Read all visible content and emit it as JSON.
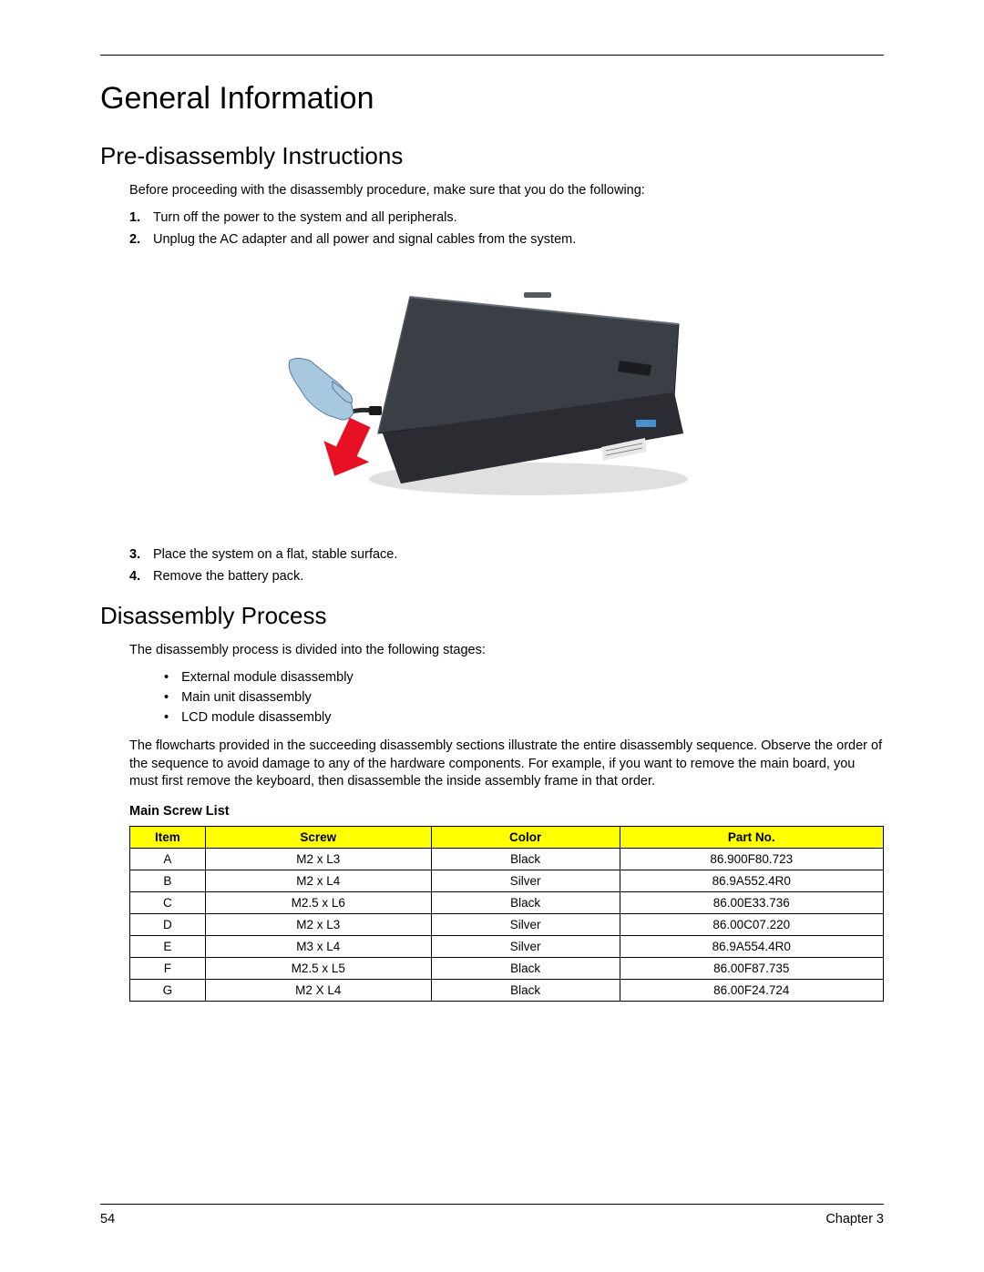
{
  "page": {
    "number": "54",
    "chapter": "Chapter 3"
  },
  "h1": "General Information",
  "section1": {
    "title": "Pre-disassembly Instructions",
    "intro": "Before proceeding with the disassembly procedure, make sure that you do the following:",
    "steps_a": [
      "Turn off the power to the system and all peripherals.",
      "Unplug the AC adapter and all power and signal cables from the system."
    ],
    "steps_b": [
      "Place the system on a flat, stable surface.",
      "Remove the battery pack."
    ]
  },
  "section2": {
    "title": "Disassembly Process",
    "intro": "The disassembly process is divided into the following stages:",
    "bullets": [
      "External module disassembly",
      "Main unit disassembly",
      "LCD module disassembly"
    ],
    "note": "The flowcharts provided in the succeeding disassembly sections illustrate the entire disassembly sequence. Observe the order of the sequence to avoid damage to any of the hardware components. For example, if you want to remove the main board, you must first remove the keyboard, then disassemble the inside assembly frame in that order."
  },
  "table": {
    "title": "Main Screw List",
    "columns": [
      "Item",
      "Screw",
      "Color",
      "Part No."
    ],
    "col_widths": [
      "10%",
      "30%",
      "25%",
      "35%"
    ],
    "header_bg": "#ffff00",
    "rows": [
      [
        "A",
        "M2 x L3",
        "Black",
        "86.900F80.723"
      ],
      [
        "B",
        "M2 x L4",
        "Silver",
        "86.9A552.4R0"
      ],
      [
        "C",
        "M2.5 x L6",
        "Black",
        "86.00E33.736"
      ],
      [
        "D",
        "M2 x L3",
        "Silver",
        "86.00C07.220"
      ],
      [
        "E",
        "M3 x L4",
        "Silver",
        "86.9A554.4R0"
      ],
      [
        "F",
        "M2.5 x L5",
        "Black",
        "86.00F87.735"
      ],
      [
        "G",
        "M2 X L4",
        "Black",
        "86.00F24.724"
      ]
    ]
  },
  "figure": {
    "description": "laptop-unplug-cable",
    "laptop_top_fill": "#3a3e45",
    "laptop_top_stroke": "#1a1c20",
    "laptop_side_fill": "#26282d",
    "arrow_fill": "#e81123",
    "hand_fill": "#a8c8e0",
    "hand_stroke": "#5a7a9a",
    "cable_stroke": "#2a2a2a",
    "sticker_fill": "#e8e8e8"
  }
}
